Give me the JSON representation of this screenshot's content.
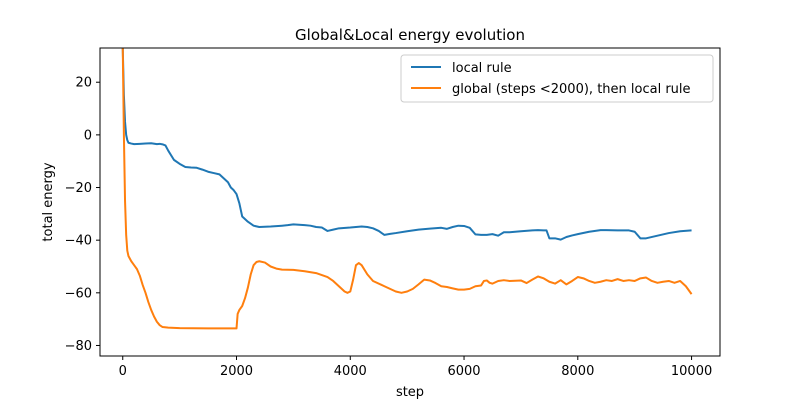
{
  "chart_data": {
    "type": "line",
    "title": "Global&Local energy evolution",
    "xlabel": "step",
    "ylabel": "total energy",
    "xlim": [
      -400,
      10500
    ],
    "ylim": [
      -84,
      33
    ],
    "xticks": [
      0,
      2000,
      4000,
      6000,
      8000,
      10000
    ],
    "yticks": [
      20,
      0,
      -20,
      -40,
      -60,
      -80
    ],
    "xtick_labels": [
      "0",
      "2000",
      "4000",
      "6000",
      "8000",
      "10000"
    ],
    "ytick_labels": [
      "20",
      "0",
      "−20",
      "−40",
      "−60",
      "−80"
    ],
    "grid": false,
    "legend_position": "top-right",
    "series": [
      {
        "name": "local rule",
        "color": "#1f77b4",
        "x": [
          0,
          20,
          40,
          60,
          80,
          100,
          150,
          200,
          300,
          400,
          500,
          600,
          650,
          700,
          750,
          800,
          900,
          1000,
          1100,
          1200,
          1300,
          1400,
          1500,
          1600,
          1700,
          1800,
          1850,
          1900,
          1950,
          2000,
          2050,
          2100,
          2200,
          2300,
          2400,
          2600,
          2800,
          2900,
          3000,
          3200,
          3300,
          3400,
          3500,
          3600,
          3700,
          3800,
          4000,
          4100,
          4200,
          4300,
          4400,
          4500,
          4600,
          4700,
          4800,
          5000,
          5200,
          5400,
          5600,
          5700,
          5800,
          5900,
          6000,
          6100,
          6200,
          6300,
          6400,
          6500,
          6600,
          6700,
          6800,
          7000,
          7200,
          7300,
          7400,
          7450,
          7500,
          7600,
          7700,
          7800,
          7900,
          8000,
          8200,
          8400,
          8500,
          8700,
          8900,
          9000,
          9100,
          9200,
          9400,
          9600,
          9800,
          10000
        ],
        "y": [
          33,
          15,
          5,
          0,
          -2,
          -3,
          -3.3,
          -3.5,
          -3.4,
          -3.3,
          -3.2,
          -3.5,
          -3.4,
          -3.6,
          -4,
          -6,
          -9.5,
          -11,
          -12.2,
          -12.4,
          -12.5,
          -13.2,
          -14,
          -14.5,
          -15,
          -17,
          -18,
          -20,
          -21,
          -22.5,
          -26,
          -31,
          -33,
          -34.5,
          -35,
          -34.8,
          -34.5,
          -34.3,
          -34,
          -34.3,
          -34.5,
          -35,
          -35.2,
          -36.5,
          -36,
          -35.5,
          -35.2,
          -35,
          -34.8,
          -35,
          -35.5,
          -36.5,
          -38,
          -37.6,
          -37.3,
          -36.6,
          -36,
          -35.6,
          -35.3,
          -35.7,
          -35,
          -34.5,
          -34.6,
          -35.3,
          -37.8,
          -38,
          -38,
          -37.7,
          -38.3,
          -37,
          -37,
          -36.6,
          -36.3,
          -36.2,
          -36.3,
          -36.3,
          -39.3,
          -39.3,
          -39.8,
          -38.8,
          -38.2,
          -37.7,
          -36.8,
          -36.2,
          -36.2,
          -36.3,
          -36.3,
          -36.8,
          -39.3,
          -39.3,
          -38.3,
          -37.3,
          -36.6,
          -36.3
        ]
      },
      {
        "name": "global (steps <2000), then local rule",
        "color": "#ff7f0e",
        "x": [
          0,
          20,
          40,
          60,
          80,
          100,
          150,
          200,
          250,
          300,
          350,
          400,
          450,
          500,
          550,
          600,
          650,
          700,
          800,
          1000,
          1500,
          1990,
          2000,
          2020,
          2050,
          2100,
          2150,
          2200,
          2250,
          2300,
          2350,
          2400,
          2500,
          2600,
          2700,
          2800,
          3000,
          3200,
          3400,
          3600,
          3700,
          3800,
          3900,
          3950,
          4000,
          4050,
          4100,
          4150,
          4200,
          4300,
          4400,
          4600,
          4800,
          4900,
          5000,
          5100,
          5200,
          5300,
          5400,
          5500,
          5600,
          5700,
          5800,
          5900,
          6000,
          6100,
          6200,
          6300,
          6350,
          6400,
          6450,
          6500,
          6600,
          6700,
          6800,
          7000,
          7100,
          7200,
          7300,
          7400,
          7500,
          7600,
          7700,
          7800,
          7900,
          8000,
          8100,
          8200,
          8300,
          8400,
          8500,
          8600,
          8700,
          8800,
          8900,
          9000,
          9100,
          9200,
          9300,
          9400,
          9500,
          9600,
          9700,
          9800,
          9900,
          10000
        ],
        "y": [
          33,
          0,
          -25,
          -38,
          -44,
          -46,
          -48,
          -49.5,
          -51,
          -53.5,
          -57,
          -60,
          -63.5,
          -66.5,
          -69,
          -71,
          -72.3,
          -73,
          -73.2,
          -73.4,
          -73.5,
          -73.5,
          -73.5,
          -68,
          -66.5,
          -65,
          -62,
          -58,
          -53,
          -49.5,
          -48.3,
          -48,
          -48.5,
          -50,
          -50.8,
          -51.2,
          -51.3,
          -51.8,
          -52.5,
          -54,
          -55.5,
          -57.5,
          -59.5,
          -60,
          -59.5,
          -55,
          -49.5,
          -48.7,
          -49.5,
          -53,
          -55.5,
          -57.5,
          -59.5,
          -60,
          -59.5,
          -58.5,
          -56.8,
          -55,
          -55.3,
          -56.3,
          -57.5,
          -57.8,
          -58.3,
          -58.8,
          -58.8,
          -58.5,
          -57.5,
          -57.2,
          -55.5,
          -55.3,
          -56.2,
          -56.5,
          -55.5,
          -55.2,
          -55.5,
          -55.3,
          -56.3,
          -55,
          -53.8,
          -54.5,
          -55.8,
          -56.5,
          -55.2,
          -56.8,
          -55.5,
          -54,
          -54.5,
          -55.5,
          -56.2,
          -55.8,
          -55.2,
          -55.5,
          -54.8,
          -55.5,
          -55.2,
          -55.5,
          -54.5,
          -54.2,
          -55.5,
          -56.2,
          -55.8,
          -55.5,
          -56.2,
          -55.5,
          -57.5,
          -60.5
        ]
      }
    ]
  }
}
